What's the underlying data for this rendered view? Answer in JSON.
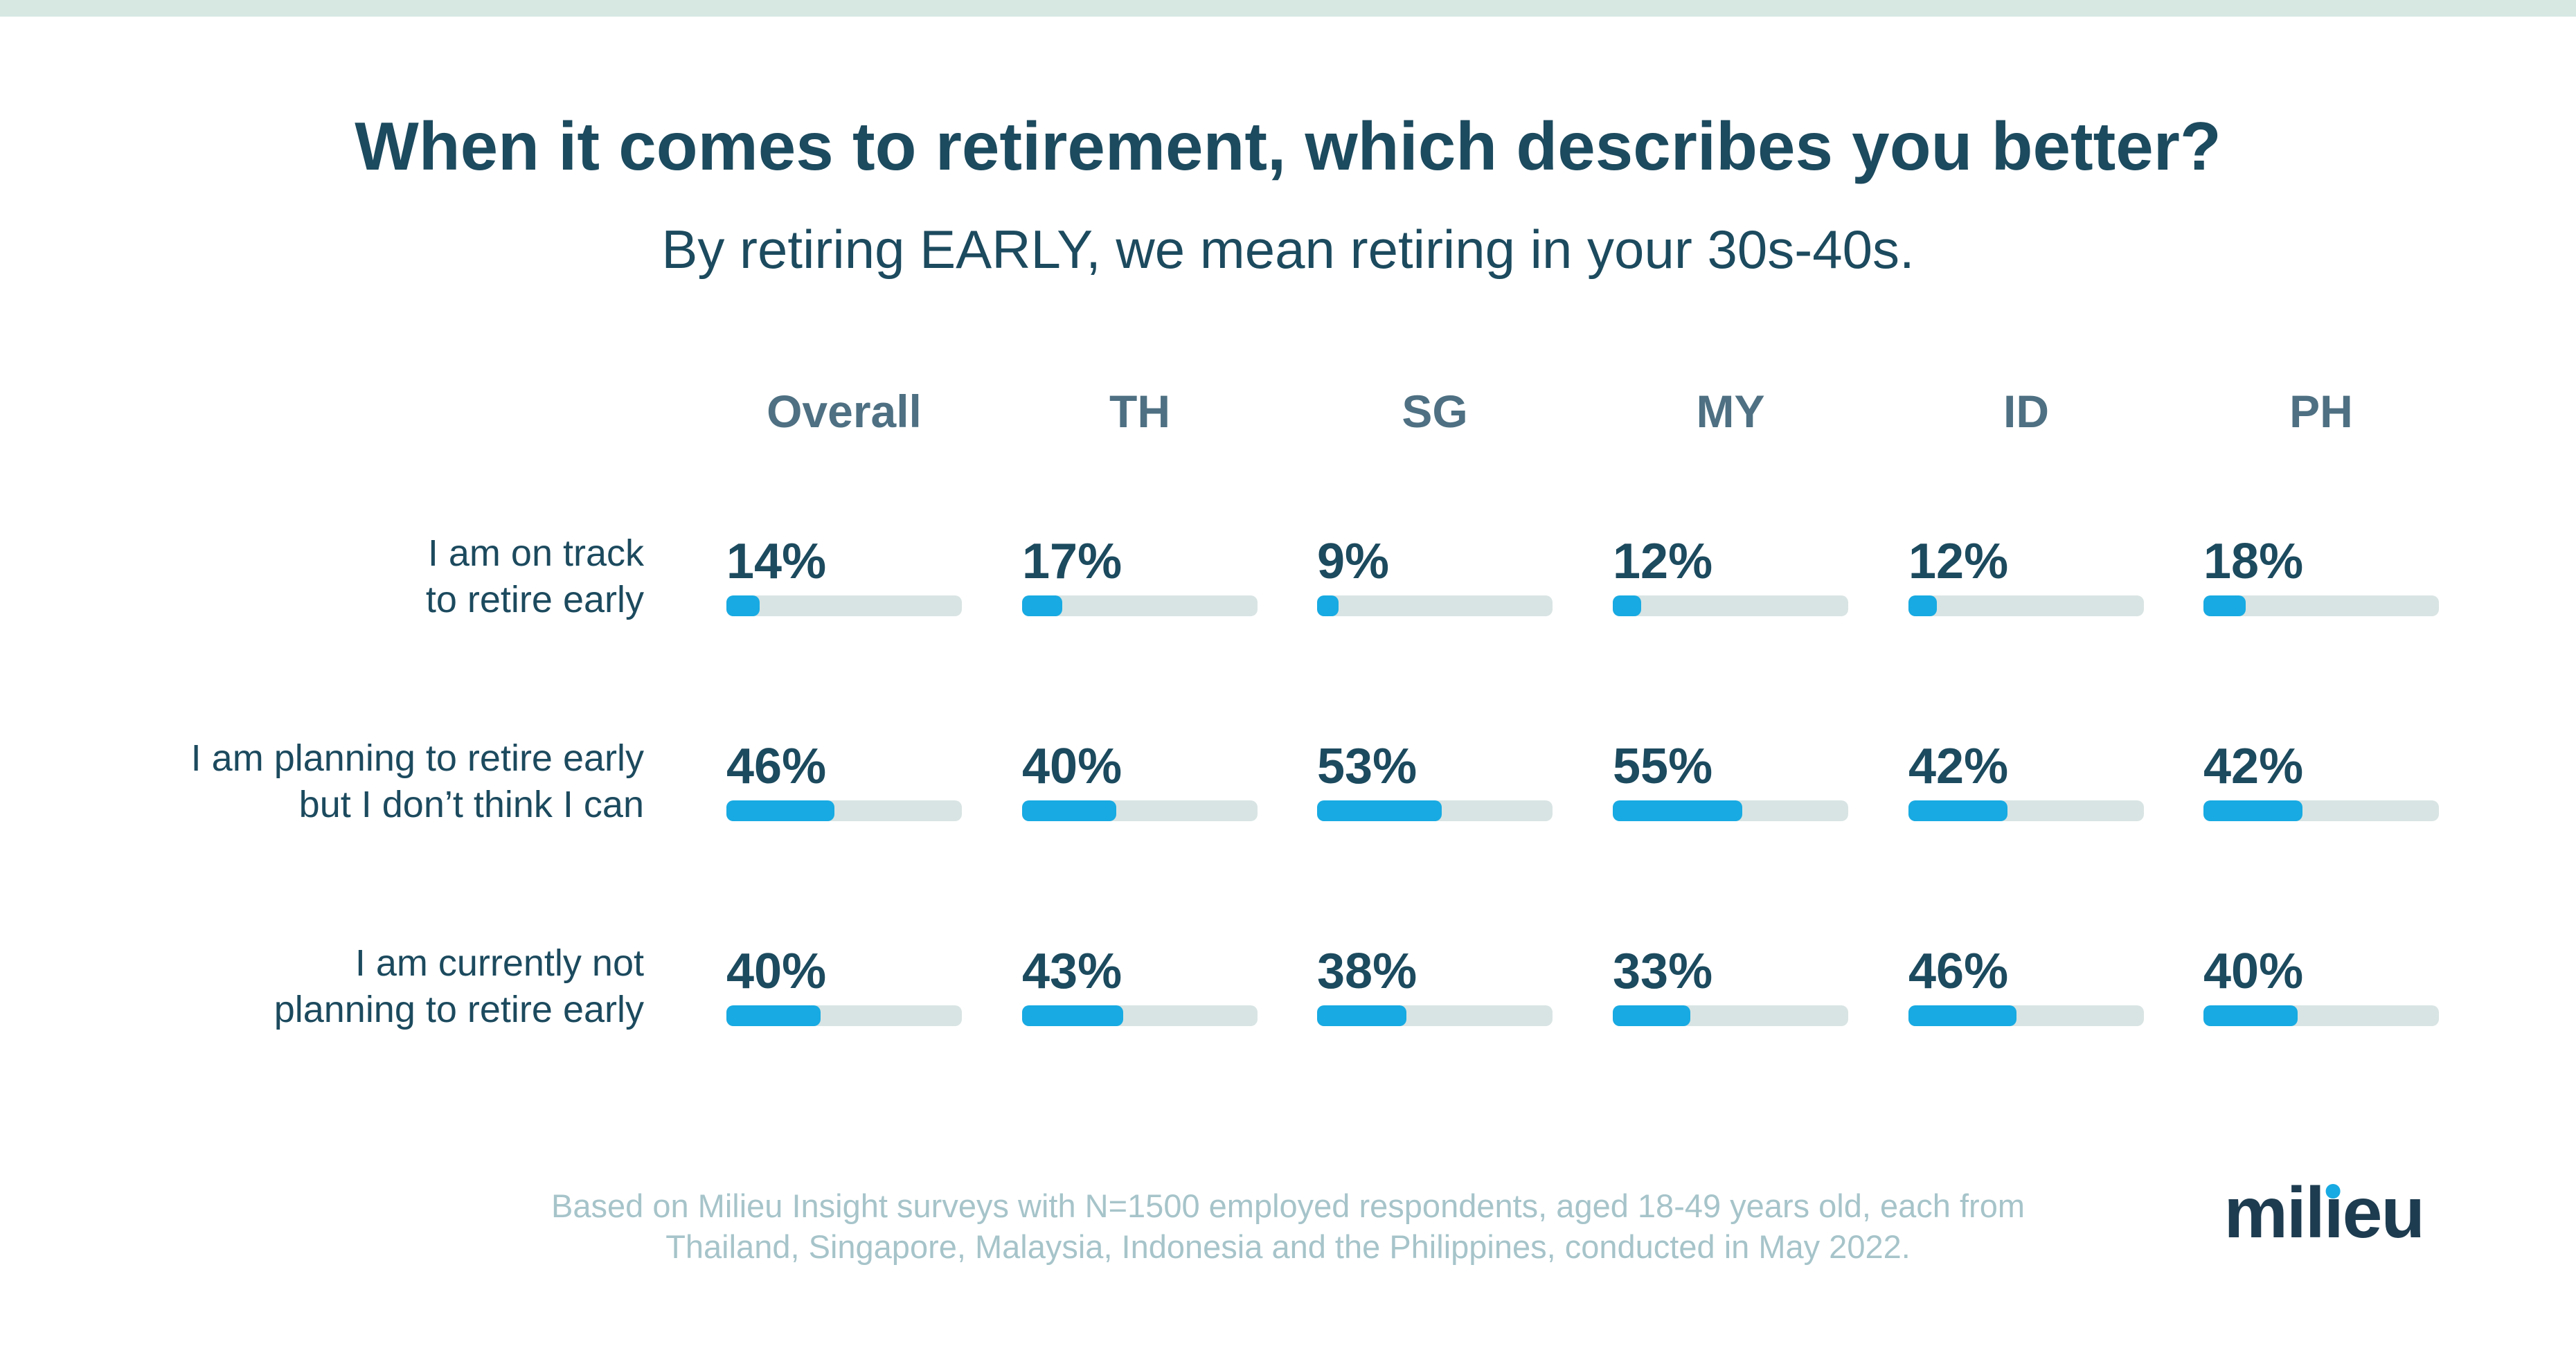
{
  "page": {
    "title": "When it comes to retirement, which describes you better?",
    "subtitle": "By retiring EARLY, we mean retiring in your 30s-40s."
  },
  "colors": {
    "bar_blue": "#18aae2",
    "bar_track": "#d8e4e3",
    "dark_teal_text": "#1c4a5e",
    "column_header_slate": "#4e7082",
    "footer_text": "#a6c4ca",
    "top_bar_mint": "#d7e8e3",
    "logo_navy": "#1e3c50"
  },
  "rows": [
    {
      "label_lines": [
        "I am on track",
        "to retire early"
      ]
    },
    {
      "label_lines": [
        "I am planning to retire early",
        "but I don’t think I can"
      ]
    },
    {
      "label_lines": [
        "I am currently not",
        "planning to retire early"
      ]
    }
  ],
  "footer": {
    "lines": [
      "Based on Milieu Insight surveys with N=1500 employed respondents, aged 18-49 years old, each from",
      "Thailand, Singapore, Malaysia, Indonesia and the Philippines, conducted in May 2022."
    ]
  },
  "logo": {
    "text": "milieu",
    "prefix": "mil",
    "dotless_i": "ı",
    "suffix": "eu"
  },
  "chart_data": {
    "type": "bar",
    "orientation": "horizontal",
    "unit": "%",
    "title": "When it comes to retirement, which describes you better?",
    "subtitle": "By retiring EARLY, we mean retiring in your 30s-40s.",
    "categories": [
      "Overall",
      "TH",
      "SG",
      "MY",
      "ID",
      "PH"
    ],
    "series": [
      {
        "name": "I am on track to retire early",
        "values": [
          14,
          17,
          9,
          12,
          12,
          18
        ]
      },
      {
        "name": "I am planning to retire early but I don’t think I can",
        "values": [
          46,
          40,
          53,
          55,
          42,
          42
        ]
      },
      {
        "name": "I am currently not planning to retire early",
        "values": [
          40,
          43,
          38,
          33,
          46,
          40
        ]
      }
    ],
    "xlim": [
      0,
      100
    ],
    "grid": false,
    "legend": false,
    "bar_color": "#18aae2",
    "track_color": "#d8e4e3"
  }
}
